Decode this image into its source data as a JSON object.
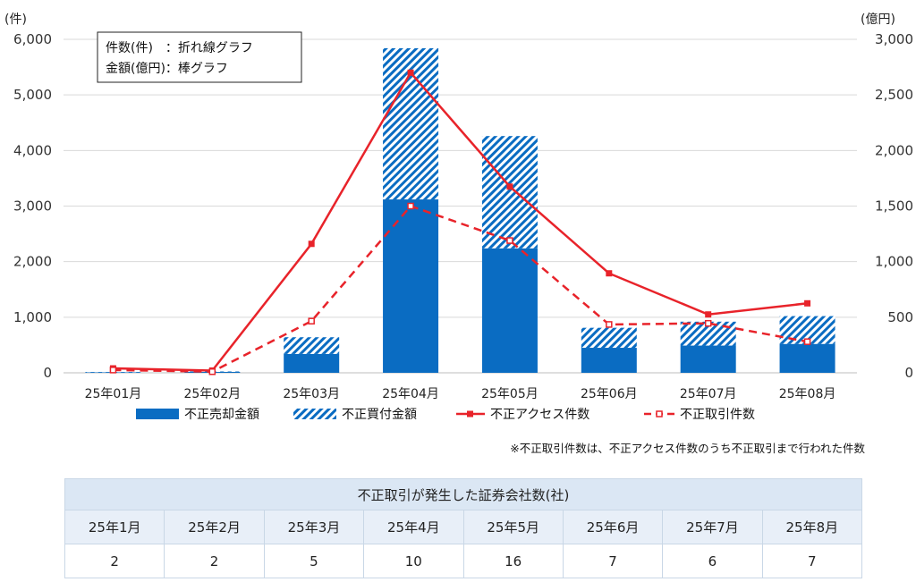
{
  "chart_data": {
    "type": "bar",
    "categories": [
      "25年01月",
      "25年02月",
      "25年03月",
      "25年04月",
      "25年05月",
      "25年06月",
      "25年07月",
      "25年08月"
    ],
    "left_axis": {
      "unit": "(件)",
      "ylim": [
        0,
        6000
      ],
      "ticks": [
        "0",
        "1,000",
        "2,000",
        "3,000",
        "4,000",
        "5,000",
        "6,000"
      ]
    },
    "right_axis": {
      "unit": "(億円)",
      "ylim": [
        0,
        3000
      ],
      "ticks": [
        "0",
        "500",
        "1,000",
        "1,500",
        "2,000",
        "2,500",
        "3,000"
      ]
    },
    "series": [
      {
        "name": "不正売却金額",
        "kind": "stacked-bar",
        "axis": "right",
        "color": "#0a6cc2",
        "values": [
          5,
          8,
          170,
          1560,
          1120,
          225,
          245,
          260
        ]
      },
      {
        "name": "不正買付金額",
        "kind": "stacked-bar-hatched",
        "axis": "right",
        "color": "#0a6cc2",
        "values": [
          3,
          4,
          150,
          1360,
          1010,
          180,
          215,
          250
        ]
      },
      {
        "name": "不正アクセス件数",
        "kind": "line-solid",
        "axis": "left",
        "color": "#e8232a",
        "values": [
          80,
          40,
          2320,
          5400,
          3350,
          1790,
          1050,
          1250
        ]
      },
      {
        "name": "不正取引件数",
        "kind": "line-dashed",
        "axis": "left",
        "color": "#e8232a",
        "values": [
          50,
          20,
          930,
          3000,
          2380,
          870,
          890,
          560
        ]
      }
    ],
    "note_box": [
      "件数(件)　：折れ線グラフ",
      "金額(億円)：棒グラフ"
    ],
    "footnote": "※不正取引件数は、不正アクセス件数のうち不正取引まで行われた件数",
    "grid": true,
    "legend_position": "bottom"
  },
  "company_table": {
    "title": "不正取引が発生した証券会社数(社)",
    "months": [
      "25年1月",
      "25年2月",
      "25年3月",
      "25年4月",
      "25年5月",
      "25年6月",
      "25年7月",
      "25年8月"
    ],
    "counts": [
      "2",
      "2",
      "5",
      "10",
      "16",
      "7",
      "6",
      "7"
    ]
  }
}
